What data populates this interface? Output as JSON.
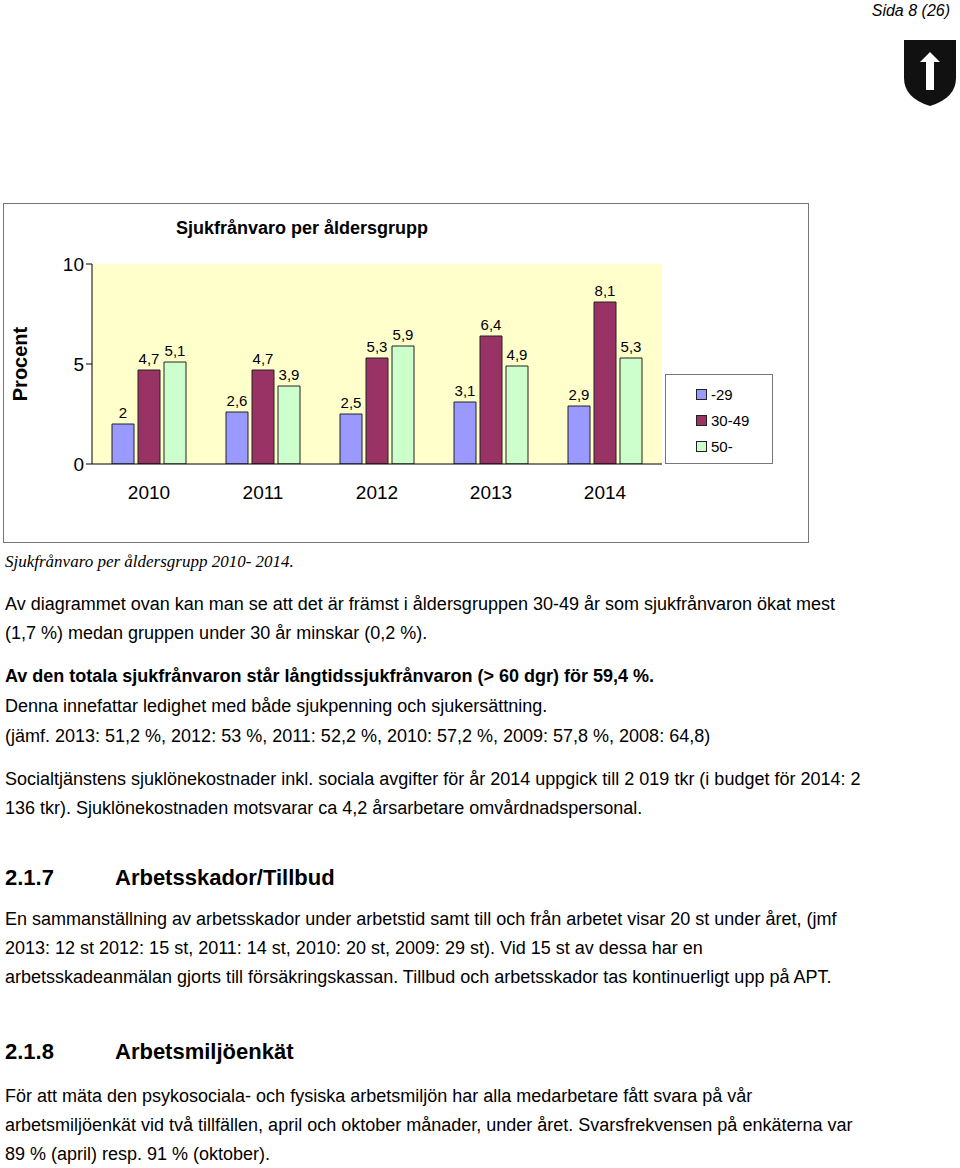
{
  "header": {
    "page": "Sida 8 (26)"
  },
  "chart_data": {
    "type": "bar",
    "title": "Sjukfrånvaro  per åldersgrupp",
    "y_label": "Procent",
    "categories": [
      "2010",
      "2011",
      "2012",
      "2013",
      "2014"
    ],
    "series": [
      {
        "name": "-29",
        "color": "#9999ff",
        "values": [
          2,
          2.6,
          2.5,
          3.1,
          2.9
        ],
        "value_labels": [
          "2",
          "2,6",
          "2,5",
          "3,1",
          "2,9"
        ]
      },
      {
        "name": "30-49",
        "color": "#993366",
        "values": [
          4.7,
          4.7,
          5.3,
          6.4,
          8.1
        ],
        "value_labels": [
          "4,7",
          "4,7",
          "5,3",
          "6,4",
          "8,1"
        ]
      },
      {
        "name": "50-",
        "color": "#ccffcc",
        "values": [
          5.1,
          3.9,
          5.9,
          4.9,
          5.3
        ],
        "value_labels": [
          "5,1",
          "3,9",
          "5,9",
          "4,9",
          "5,3"
        ]
      }
    ],
    "ylim": [
      0,
      10
    ],
    "yticks": [
      0,
      5,
      10
    ],
    "grid": false,
    "legend": "right",
    "data_labels": true
  },
  "caption": "Sjukfrånvaro per åldersgrupp 2010- 2014.",
  "body": [
    {
      "kind": "p",
      "text": "Av diagrammet ovan kan man se att det är främst i åldersgruppen 30-49 år som sjukfrånvaron ökat mest (1,7 %) medan gruppen under 30 år minskar (0,2 %)."
    },
    {
      "kind": "p",
      "text": "Av den totala sjukfrånvaron står långtidssjukfrånvaron (> 60 dgr) för 59,4 %.",
      "bold": true
    },
    {
      "kind": "p",
      "text": "Denna innefattar ledighet med både sjukpenning och sjukersättning."
    },
    {
      "kind": "p",
      "text": "(jämf. 2013: 51,2 %, 2012: 53 %, 2011: 52,2 %, 2010: 57,2 %, 2009: 57,8 %, 2008: 64,8)"
    },
    {
      "kind": "p",
      "text": "Socialtjänstens sjuklönekostnader inkl. sociala avgifter för år 2014 uppgick till 2 019 tkr  (i budget för 2014: 2 136 tkr). Sjuklönekostnaden motsvarar ca 4,2 årsarbetare omvårdnadspersonal."
    },
    {
      "kind": "h",
      "number": "2.1.7",
      "text": "Arbetsskador/Tillbud"
    },
    {
      "kind": "p",
      "text": "En sammanställning av arbetsskador under arbetstid samt till och från arbetet visar 20 st under året, (jmf  2013: 12 st 2012: 15 st,  2011: 14 st, 2010: 20 st, 2009: 29 st). Vid 15 st av dessa har en arbetsskadeanmälan gjorts till försäkringskassan. Tillbud och arbetsskador tas kontinuerligt upp på APT."
    },
    {
      "kind": "h",
      "number": "2.1.8",
      "text": "Arbetsmiljöenkät"
    },
    {
      "kind": "p",
      "text": "För att mäta den psykosociala- och fysiska arbetsmiljön har alla medarbetare fått svara på vår arbetsmiljöenkät vid två tillfällen, april och oktober månader, under året. Svarsfrekvensen på enkäterna var 89 % (april) resp. 91 % (oktober)."
    }
  ]
}
